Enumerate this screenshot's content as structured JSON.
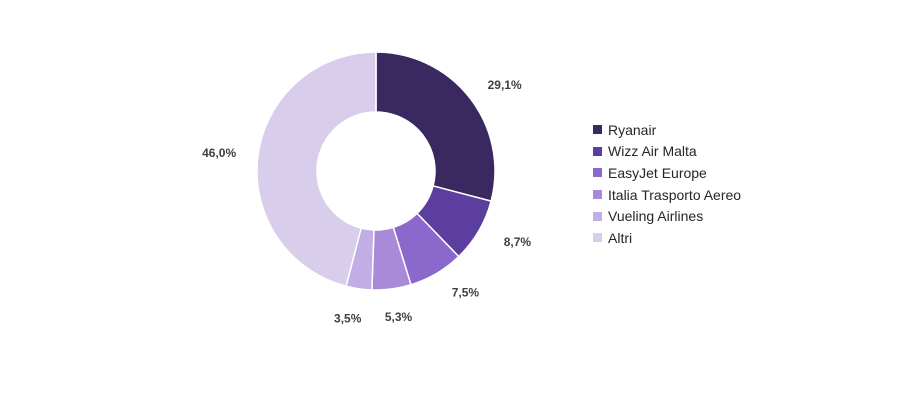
{
  "chart_data": {
    "type": "pie",
    "variant": "donut",
    "categories": [
      "Ryanair",
      "Wizz Air Malta",
      "EasyJet Europe",
      "Italia Trasporto Aereo",
      "Vueling Airlines",
      "Altri"
    ],
    "values": [
      29.1,
      8.7,
      7.5,
      5.3,
      3.5,
      46.0
    ],
    "value_labels": [
      "29,1%",
      "8,7%",
      "7,5%",
      "5,3%",
      "3,5%",
      "46,0%"
    ],
    "colors": [
      "#3a2960",
      "#5c3e9e",
      "#8a68cc",
      "#a98ad8",
      "#c2aee4",
      "#d8cdea"
    ],
    "title": "",
    "legend_position": "right"
  }
}
